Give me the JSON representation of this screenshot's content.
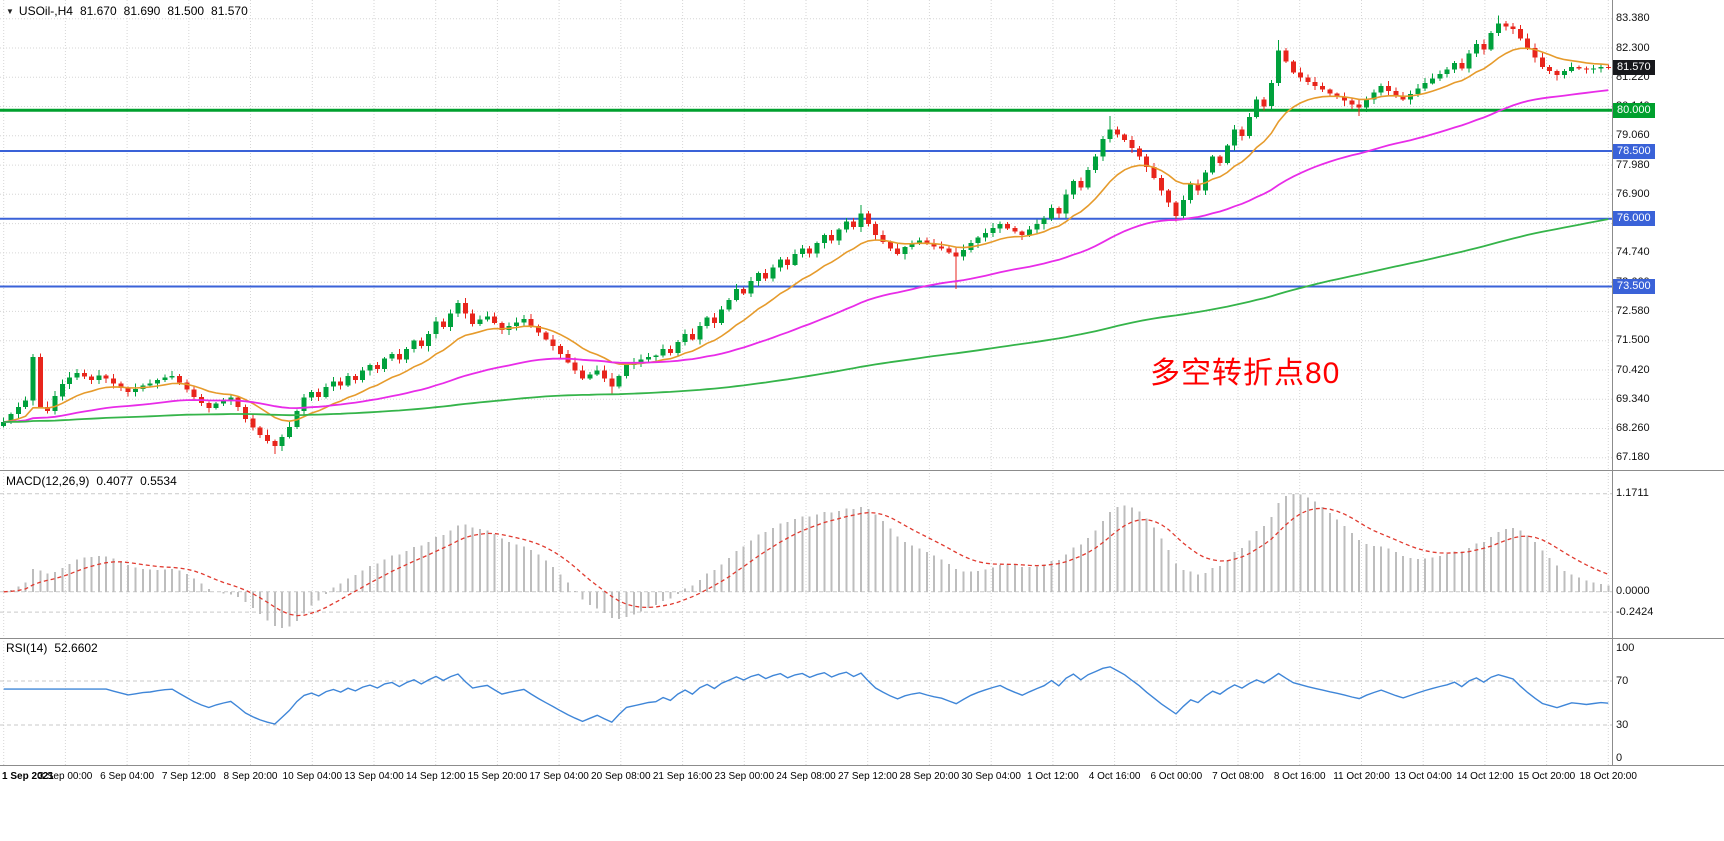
{
  "header": {
    "dropdown_icon": "▼",
    "symbol": "USOil-,H4",
    "open": "81.670",
    "high": "81.690",
    "low": "81.500",
    "close": "81.570"
  },
  "colors": {
    "background": "#ffffff",
    "grid": "#d6d6d6",
    "candle_up": "#00a13c",
    "candle_down": "#e8251c",
    "macd_hist": "#bdbdbd",
    "macd_signal": "#e03a2f",
    "rsi_line": "#3f86d8",
    "level_dash": "#c9c9c9",
    "border": "#8c8c8c",
    "axis_text": "#111111",
    "current_price_badge": "#17181c",
    "annotation": "#ff0000"
  },
  "chart_data": {
    "type": "candlestick",
    "symbol": "USOil",
    "timeframe": "H4",
    "last_ohlc": {
      "open": 81.67,
      "high": 81.69,
      "low": 81.5,
      "close": 81.57
    },
    "y_range": [
      66.95,
      83.85
    ],
    "first_open": 68.35,
    "closes": [
      68.5,
      68.8,
      69.05,
      69.3,
      70.9,
      69.05,
      68.9,
      69.45,
      69.9,
      70.15,
      70.3,
      70.18,
      70.05,
      70.22,
      70.1,
      69.92,
      69.75,
      69.6,
      69.72,
      69.85,
      69.92,
      70.05,
      70.15,
      70.2,
      69.95,
      69.7,
      69.42,
      69.2,
      69.02,
      69.18,
      69.3,
      69.4,
      69.05,
      68.62,
      68.3,
      68.02,
      67.8,
      67.62,
      67.95,
      68.32,
      68.9,
      69.4,
      69.6,
      69.42,
      69.8,
      70.0,
      69.85,
      70.2,
      70.05,
      70.4,
      70.6,
      70.45,
      70.85,
      71.0,
      70.8,
      71.2,
      71.5,
      71.3,
      71.75,
      72.2,
      72.0,
      72.5,
      72.9,
      72.5,
      72.12,
      72.28,
      72.4,
      72.15,
      71.9,
      72.05,
      72.18,
      72.3,
      72.05,
      71.8,
      71.55,
      71.3,
      71.0,
      70.7,
      70.4,
      70.1,
      70.25,
      70.4,
      70.1,
      69.8,
      70.2,
      70.6,
      70.7,
      70.8,
      70.9,
      70.95,
      71.2,
      71.05,
      71.45,
      71.75,
      71.55,
      72.05,
      72.35,
      72.15,
      72.65,
      73.0,
      73.4,
      73.25,
      73.7,
      74.0,
      73.8,
      74.2,
      74.5,
      74.3,
      74.7,
      74.9,
      74.72,
      75.1,
      75.4,
      75.2,
      75.6,
      75.9,
      75.7,
      76.2,
      75.8,
      75.4,
      75.15,
      74.9,
      74.7,
      74.95,
      75.1,
      75.2,
      75.08,
      74.98,
      74.9,
      74.75,
      74.6,
      74.85,
      75.1,
      75.3,
      75.48,
      75.65,
      75.8,
      75.65,
      75.52,
      75.4,
      75.6,
      75.8,
      76.0,
      76.4,
      76.2,
      76.9,
      77.4,
      77.15,
      77.8,
      78.3,
      78.95,
      79.3,
      79.1,
      78.9,
      78.6,
      78.3,
      77.9,
      77.5,
      77.05,
      76.6,
      76.1,
      76.7,
      77.3,
      77.05,
      77.7,
      78.3,
      78.05,
      78.7,
      79.3,
      79.05,
      79.75,
      80.4,
      80.15,
      81.0,
      82.2,
      81.8,
      81.4,
      81.22,
      81.05,
      80.9,
      80.76,
      80.62,
      80.5,
      80.36,
      80.22,
      80.1,
      80.4,
      80.66,
      80.9,
      80.72,
      80.55,
      80.4,
      80.6,
      80.8,
      81.0,
      81.18,
      81.35,
      81.5,
      81.75,
      81.55,
      82.1,
      82.45,
      82.25,
      82.85,
      83.2,
      83.1,
      83.0,
      82.65,
      82.3,
      81.95,
      81.6,
      81.45,
      81.3,
      81.45,
      81.6,
      81.55,
      81.5,
      81.55,
      81.6,
      81.57
    ],
    "wick_overrides": {
      "4": {
        "high": 71.0
      },
      "37": {
        "low": 67.32
      },
      "62": {
        "high": 73.0
      },
      "83": {
        "low": 69.52
      },
      "117": {
        "high": 76.5
      },
      "130": {
        "low": 73.4
      },
      "151": {
        "high": 79.8
      },
      "160": {
        "low": 75.9
      },
      "174": {
        "high": 82.6
      },
      "185": {
        "low": 79.8
      },
      "204": {
        "high": 83.5
      },
      "219": {
        "high": 81.69,
        "low": 81.5
      }
    },
    "price_axis_labels": [
      "83.380",
      "82.300",
      "81.220",
      "80.140",
      "79.060",
      "77.980",
      "76.900",
      "75.820",
      "74.740",
      "73.660",
      "72.580",
      "71.500",
      "70.420",
      "69.340",
      "68.260",
      "67.180"
    ],
    "levels": [
      {
        "value": 80.0,
        "label": "80.000",
        "color": "#00a02e",
        "width": 3
      },
      {
        "value": 78.5,
        "label": "78.500",
        "color": "#3a62d8",
        "width": 2
      },
      {
        "value": 76.0,
        "label": "76.000",
        "color": "#3a62d8",
        "width": 2
      },
      {
        "value": 73.5,
        "label": "73.500",
        "color": "#3a62d8",
        "width": 2
      }
    ],
    "current_price": {
      "value": 81.57,
      "label": "81.570"
    },
    "moving_averages": [
      {
        "name": "fast-ma",
        "period": 13,
        "color": "#e69b2c",
        "width": 1.6
      },
      {
        "name": "mid-ma",
        "period": 55,
        "color": "#e82ce8",
        "width": 1.8
      },
      {
        "name": "slow-ma",
        "period": 220,
        "color": "#35b44a",
        "width": 1.8
      }
    ],
    "annotation": {
      "text": "多空转折点80",
      "x": 1150,
      "y": 348
    },
    "macd": {
      "label": "MACD(12,26,9)",
      "fast": 12,
      "slow": 26,
      "signal": 9,
      "value_main": "0.4077",
      "value_signal": "0.5534",
      "display_max": 1.1711,
      "axis": [
        {
          "label": "1.1711",
          "value": 1.1711
        },
        {
          "label": "0.0000",
          "value": 0
        },
        {
          "label": "-0.2424",
          "value": -0.2424
        }
      ]
    },
    "rsi": {
      "label": "RSI(14)",
      "period": 14,
      "value": "52.6602",
      "axis": [
        {
          "label": "100",
          "value": 100
        },
        {
          "label": "70",
          "value": 70
        },
        {
          "label": "30",
          "value": 30
        },
        {
          "label": "0",
          "value": 0
        }
      ],
      "level_values": [
        70,
        30
      ]
    },
    "time_axis_labels": [
      "1 Sep 2021",
      "3 Sep 00:00",
      "6 Sep 04:00",
      "7 Sep 12:00",
      "8 Sep 20:00",
      "10 Sep 04:00",
      "13 Sep 04:00",
      "14 Sep 12:00",
      "15 Sep 20:00",
      "17 Sep 04:00",
      "20 Sep 08:00",
      "21 Sep 16:00",
      "23 Sep 00:00",
      "24 Sep 08:00",
      "27 Sep 12:00",
      "28 Sep 20:00",
      "30 Sep 04:00",
      "1 Oct 12:00",
      "4 Oct 16:00",
      "6 Oct 00:00",
      "7 Oct 08:00",
      "8 Oct 16:00",
      "11 Oct 20:00",
      "13 Oct 04:00",
      "14 Oct 12:00",
      "15 Oct 20:00",
      "18 Oct 20:00"
    ]
  }
}
